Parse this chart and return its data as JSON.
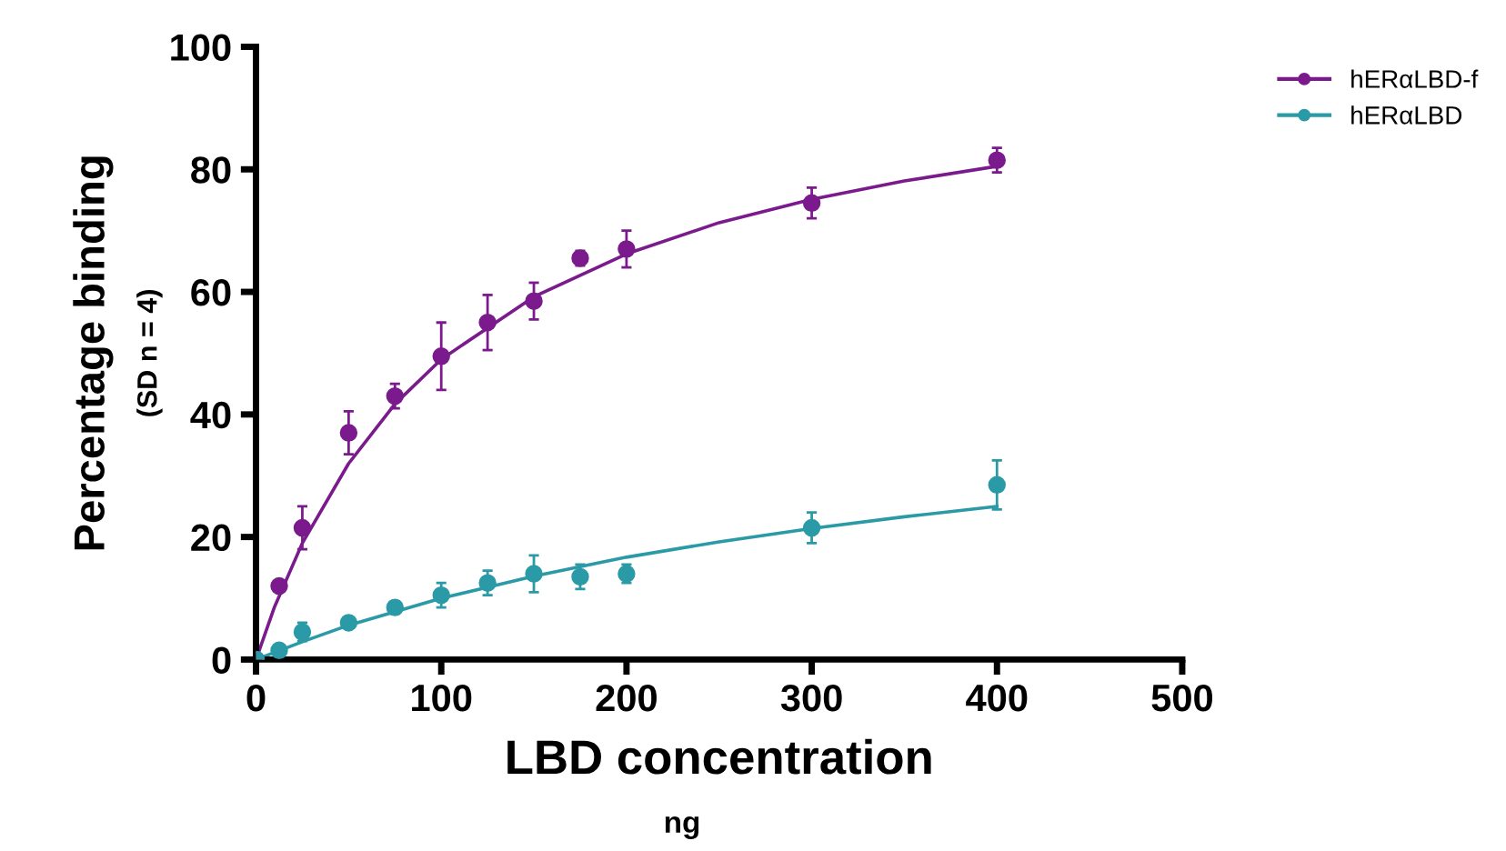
{
  "chart_data": {
    "type": "scatter",
    "xlabel": "LBD concentration",
    "ylabel": "Percentage binding",
    "annotations": [
      "(SD n = 4)",
      "ng"
    ],
    "xlim": [
      0,
      500
    ],
    "xticks": [
      0,
      100,
      200,
      300,
      400,
      500
    ],
    "ylim": [
      0,
      100
    ],
    "yticks": [
      0,
      20,
      40,
      60,
      80,
      100
    ],
    "grid": false,
    "legend": "top right",
    "series": [
      {
        "name": "hERαLBD-f",
        "marker": "circle",
        "color": "#7b1a8c",
        "x": [
          0,
          12.5,
          25,
          50,
          75,
          100,
          125,
          150,
          175,
          200,
          300,
          400
        ],
        "values": [
          0,
          12,
          21.5,
          37,
          43,
          49.5,
          55,
          58.5,
          65.5,
          67,
          74.5,
          81.5
        ],
        "errors": [
          null,
          null,
          3.5,
          3.5,
          2,
          5.5,
          4.5,
          3,
          1.2,
          3,
          2.5,
          2
        ]
      },
      {
        "type": "line",
        "marker": "none",
        "color": "#7b1a8c",
        "x": [
          0,
          10,
          25,
          50,
          75,
          100,
          150,
          200,
          250,
          300,
          350,
          400
        ],
        "values": [
          0,
          8.6,
          19,
          32,
          41.7,
          49,
          59.2,
          66.2,
          71.3,
          75.1,
          78.1,
          80.5
        ]
      },
      {
        "name": "hERαLBD",
        "marker": "circle",
        "color": "#2a9aa6",
        "x": [
          0,
          12.5,
          25,
          50,
          75,
          100,
          125,
          150,
          175,
          200,
          300,
          400
        ],
        "values": [
          0,
          1.5,
          4.5,
          6,
          8.5,
          10.5,
          12.5,
          14,
          13.5,
          14,
          21.5,
          28.5
        ],
        "errors": [
          null,
          null,
          1.5,
          null,
          1,
          2,
          2,
          3,
          2,
          1.5,
          2.5,
          4
        ]
      },
      {
        "type": "line",
        "marker": "none",
        "color": "#2a9aa6",
        "x": [
          0,
          25,
          50,
          100,
          150,
          200,
          250,
          300,
          350,
          400
        ],
        "values": [
          0,
          2.9,
          5.6,
          10,
          13.6,
          16.7,
          19.2,
          21.4,
          23.3,
          25
        ]
      }
    ]
  }
}
